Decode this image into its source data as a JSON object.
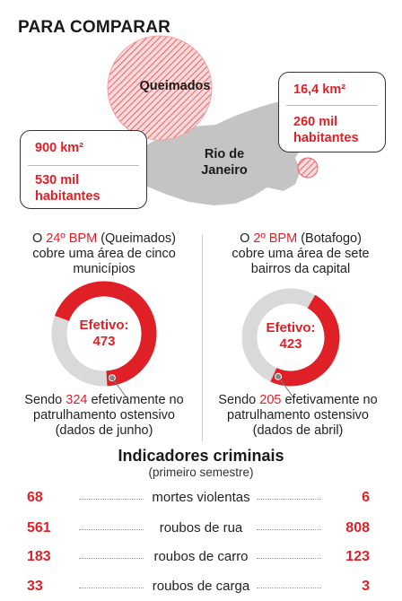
{
  "title": "PARA COMPARAR",
  "map": {
    "queimados_label": "Queimados",
    "rio_label_line1": "Rio de",
    "rio_label_line2": "Janeiro"
  },
  "left_box": {
    "area": "900 km²",
    "pop_line1": "530 mil",
    "pop_line2": "habitantes"
  },
  "right_box": {
    "area": "16,4 km²",
    "pop_line1": "260 mil",
    "pop_line2": "habitantes"
  },
  "left_col": {
    "intro_pre": "O ",
    "bpm": "24º BPM",
    "intro_post": " (Queimados)",
    "line2": "cobre uma área de cinco",
    "line3": "municípios",
    "efetivo_label": "Efetivo:",
    "efetivo_value": "473",
    "patrol_pre": "Sendo ",
    "patrol_num": "324",
    "patrol_post": " efetivamente no",
    "patrol_line2": "patrulhamento ostensivo",
    "patrol_line3": "(dados de junho)"
  },
  "right_col": {
    "intro_pre": "O ",
    "bpm": "2º BPM",
    "intro_post": " (Botafogo)",
    "line2": "cobre uma área de sete",
    "line3": "bairros da capital",
    "efetivo_label": "Efetivo:",
    "efetivo_value": "423",
    "patrol_pre": "Sendo ",
    "patrol_num": "205",
    "patrol_post": " efetivamente no",
    "patrol_line2": "patrulhamento ostensivo",
    "patrol_line3": "(dados de abril)"
  },
  "donuts": {
    "left_fraction": 0.685,
    "right_fraction": 0.485,
    "red_color": "#e02027",
    "gray_color": "#d9d9d9"
  },
  "indicators": {
    "title": "Indicadores criminais",
    "subtitle": "(primeiro semestre)",
    "rows": [
      {
        "left": "68",
        "label": "mortes violentas",
        "right": "6"
      },
      {
        "left": "561",
        "label": "roubos de rua",
        "right": "808"
      },
      {
        "left": "183",
        "label": "roubos de carro",
        "right": "123"
      },
      {
        "left": "33",
        "label": "roubos de carga",
        "right": "3"
      }
    ]
  }
}
